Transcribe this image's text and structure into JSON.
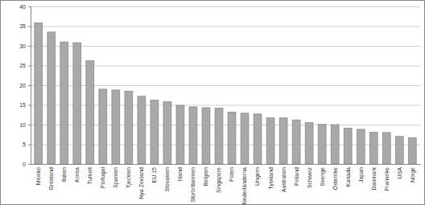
{
  "chart_data": {
    "type": "bar",
    "categories": [
      "Mexiko",
      "Grekland",
      "Italien",
      "Korea",
      "Turkiet",
      "Portugal",
      "Spanien",
      "Tjeckien",
      "Nya Zeeland",
      "EU 15",
      "Slovakien",
      "Irland",
      "Storbritannien",
      "Belgien",
      "Singapore",
      "Polen",
      "Nederländerna",
      "Ungern",
      "Tyskland",
      "Australien",
      "Finland",
      "Schweiz",
      "Sverige",
      "Österrike",
      "Kanada",
      "Japan",
      "Danmark",
      "Frankrike",
      "USA",
      "Norge"
    ],
    "values": [
      35.8,
      33.5,
      31.0,
      30.8,
      26.2,
      19.0,
      18.8,
      18.5,
      17.2,
      16.2,
      15.8,
      14.9,
      14.5,
      14.3,
      14.2,
      13.2,
      12.9,
      12.7,
      11.7,
      11.7,
      11.2,
      10.5,
      10.1,
      10.0,
      9.1,
      8.8,
      8.1,
      8.0,
      7.0,
      6.7
    ],
    "color": "#a9a9a9",
    "ylim": [
      0,
      40
    ],
    "yticks": [
      0,
      5,
      10,
      15,
      20,
      25,
      30,
      35,
      40
    ],
    "grid": true
  }
}
